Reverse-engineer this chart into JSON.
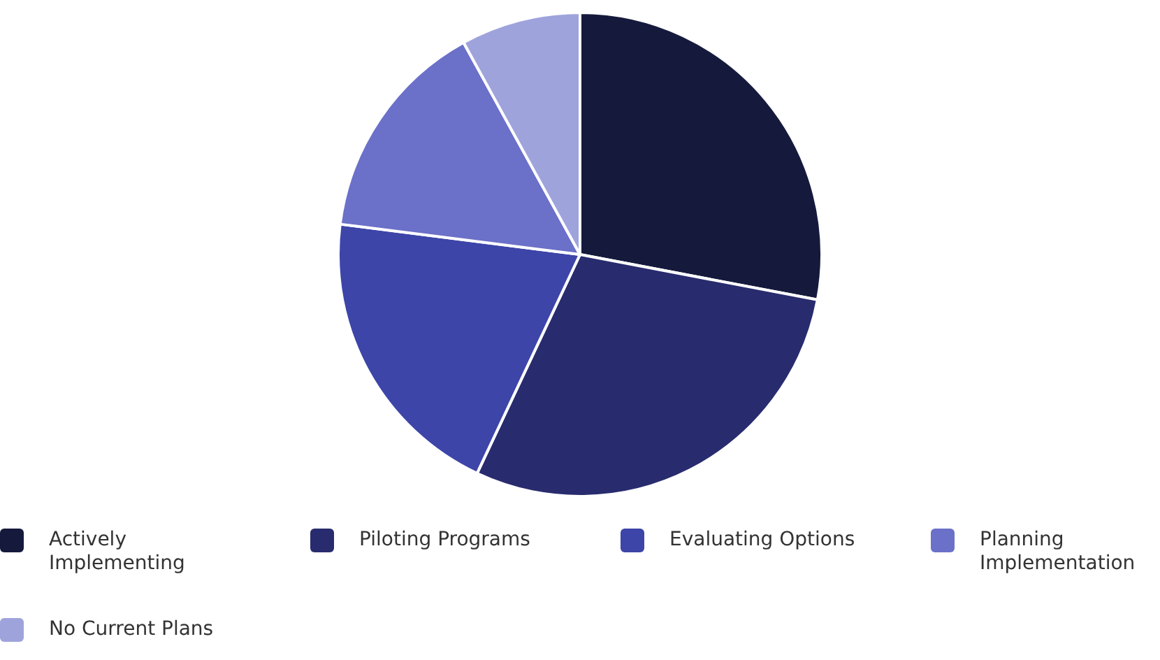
{
  "chart_data": {
    "type": "pie",
    "categories": [
      "Actively Implementing",
      "Piloting Programs",
      "Evaluating Options",
      "Planning Implementation",
      "No Current Plans"
    ],
    "values": [
      28,
      29,
      20,
      15,
      8
    ],
    "colors": [
      "#151a3d",
      "#282c6e",
      "#3d45a8",
      "#6b70c9",
      "#9fa3dc"
    ],
    "legend": "bottom"
  }
}
